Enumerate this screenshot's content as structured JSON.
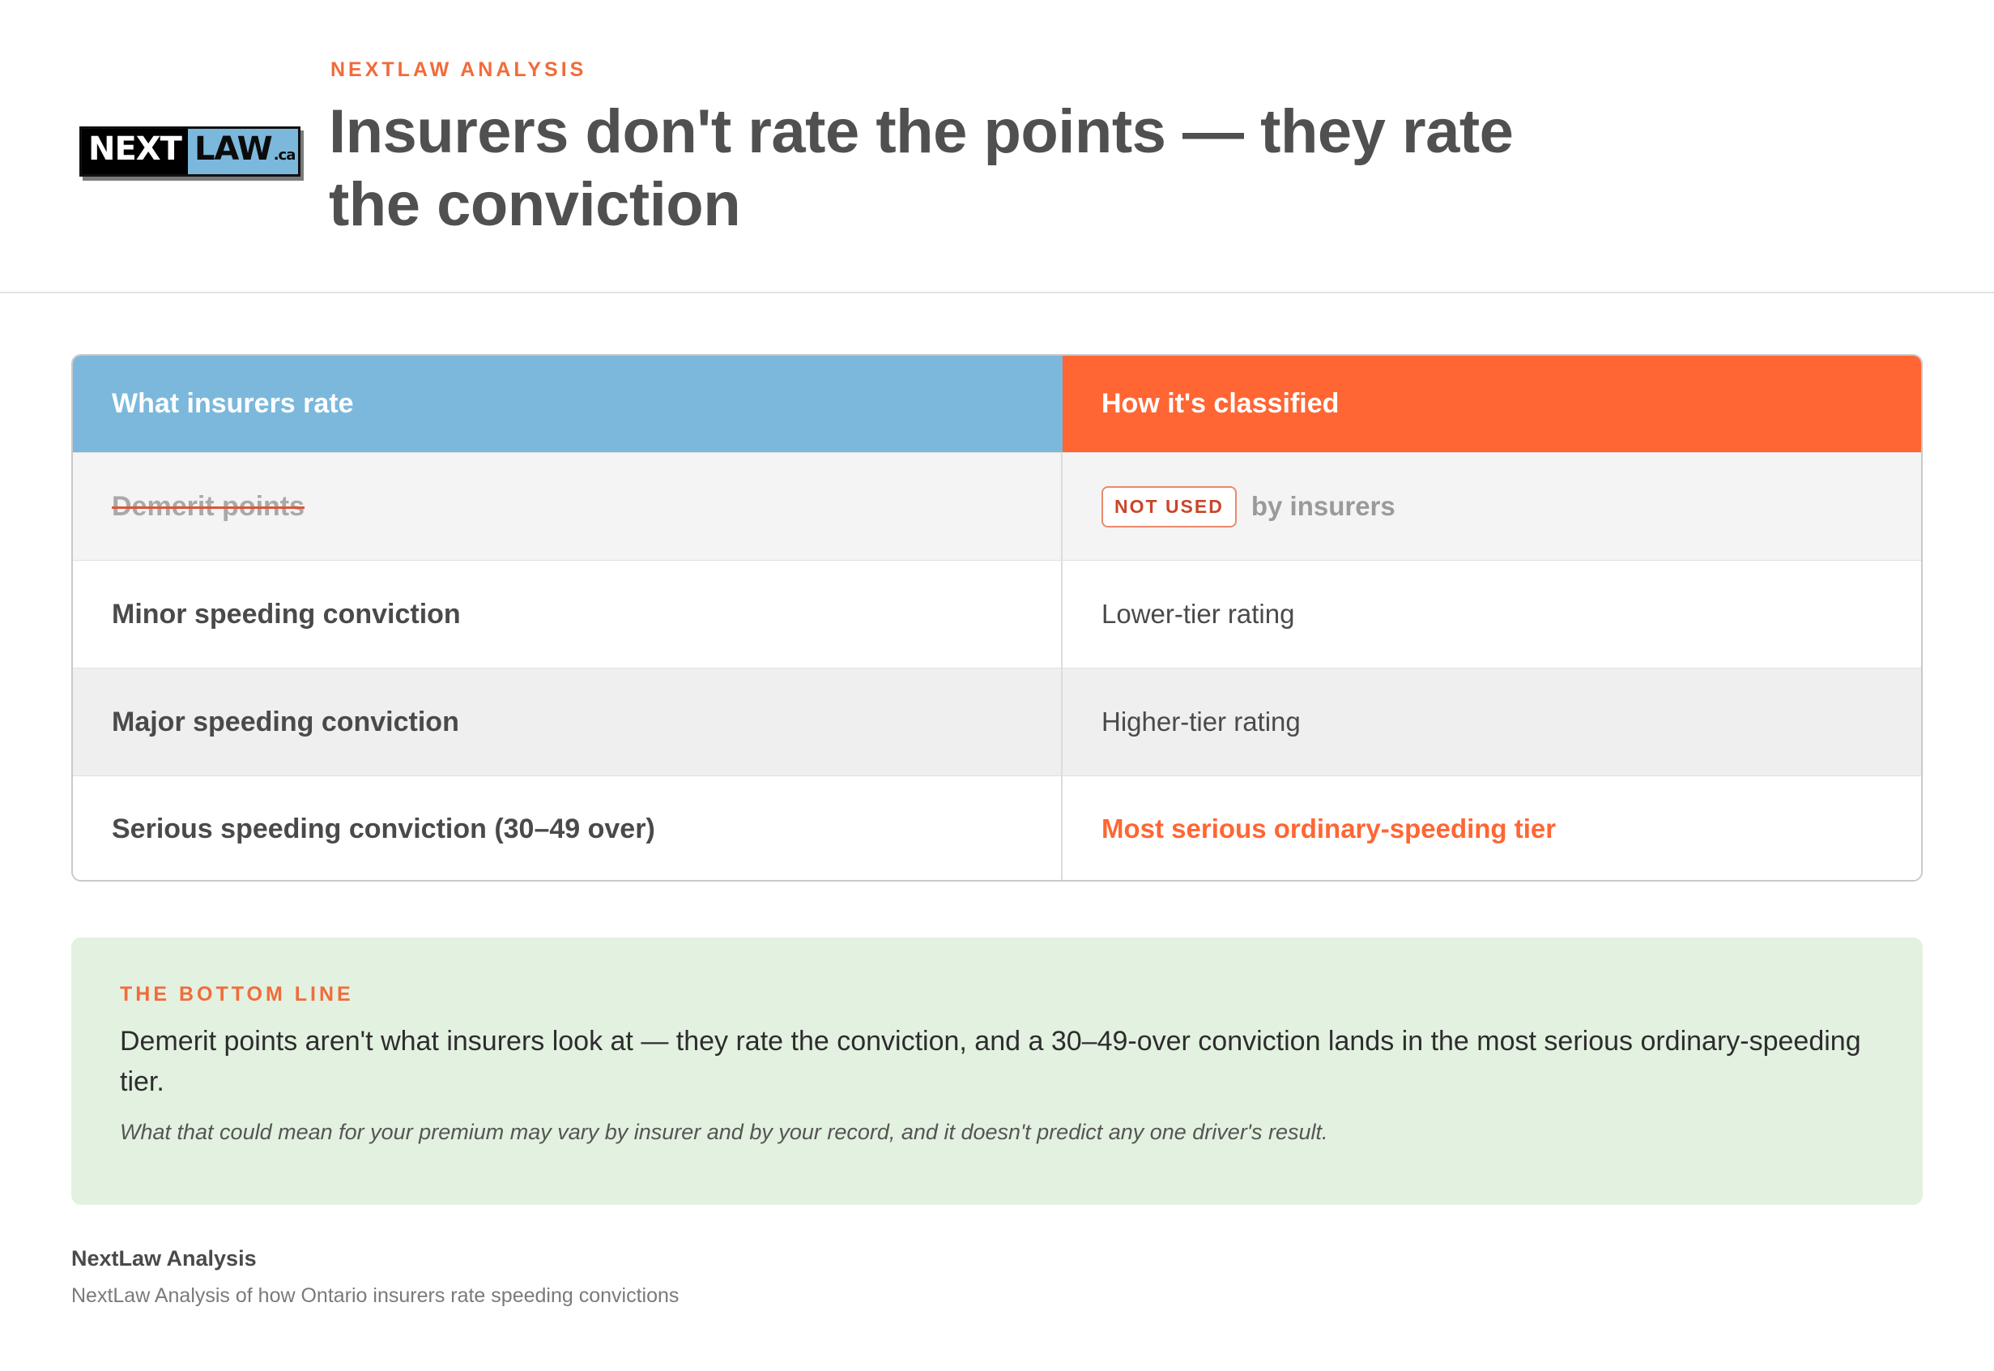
{
  "brand": {
    "logo_part1": "NEXT",
    "logo_part2": "LAW",
    "logo_suffix": ".ca"
  },
  "header": {
    "kicker": "NEXTLAW ANALYSIS",
    "title": "Insurers don't rate the points — they rate the conviction"
  },
  "table": {
    "col1_header": "What insurers rate",
    "col2_header": "How it's classified",
    "rows": [
      {
        "label": "Demerit points",
        "badge": "NOT USED",
        "value": "by insurers",
        "struck": true
      },
      {
        "label": "Minor speeding conviction",
        "value": "Lower-tier rating"
      },
      {
        "label": "Major speeding conviction",
        "value": "Higher-tier rating"
      },
      {
        "label": "Serious speeding conviction (30–49 over)",
        "value": "Most serious ordinary-speeding tier",
        "highlight": true
      }
    ]
  },
  "colors": {
    "col1_header_bg": "#7bb8dc",
    "col2_header_bg": "#ff6633",
    "accent": "#ff6633",
    "bottom_line_bg": "#e3f1e0"
  },
  "bottom_line": {
    "kicker": "THE BOTTOM LINE",
    "main": "Demerit points aren't what insurers look at — they rate the conviction, and a 30–49-over conviction lands in the most serious ordinary-speeding tier.",
    "note": "What that could mean for your premium may vary by insurer and by your record, and it doesn't predict any one driver's result."
  },
  "footer": {
    "title": "NextLaw Analysis",
    "subtitle": "NextLaw Analysis of how Ontario insurers rate speeding convictions"
  }
}
